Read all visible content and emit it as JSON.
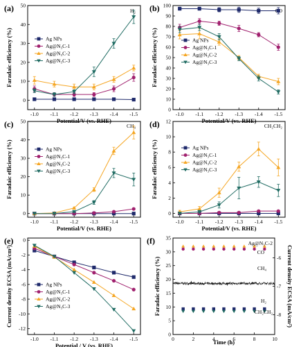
{
  "colors": {
    "navy": "#1f2a6b",
    "magenta": "#a0206e",
    "orange": "#f5a623",
    "teal": "#1f6b62",
    "violet": "#b04cc4"
  },
  "panels": [
    {
      "letter": "(a)",
      "gas": "H₂",
      "ylabel": "Faradaic efficiency (%)",
      "xlabel": "Potential/V (vs. RHE)",
      "x": [
        -1.0,
        -1.1,
        -1.2,
        -1.3,
        -1.4,
        -1.5
      ],
      "xticks": [
        "-1.0",
        "-1.1",
        "-1.2",
        "-1.3",
        "-1.4",
        "-1.5"
      ],
      "ylim": [
        -5,
        50
      ],
      "yticks": [
        "0",
        "10",
        "20",
        "30",
        "40",
        "50"
      ],
      "legend_position": "top-left",
      "series": [
        {
          "name": "Ag NPs",
          "values": [
            0.5,
            0.5,
            0.5,
            0.5,
            0.5,
            0.3
          ],
          "errs": [
            0.4,
            0.4,
            0.4,
            0.4,
            0.4,
            0.4
          ]
        },
        {
          "name": "Ag@N₃C-1",
          "values": [
            6,
            3,
            3,
            3,
            6,
            12
          ],
          "errs": [
            1.5,
            1,
            1,
            1,
            1.5,
            2
          ]
        },
        {
          "name": "Ag@N₃C-2",
          "values": [
            10.5,
            8.5,
            7,
            7,
            11,
            17
          ],
          "errs": [
            2,
            1.5,
            1.5,
            1.5,
            1.5,
            1.5
          ]
        },
        {
          "name": "Ag@N₃C-3",
          "values": [
            5,
            3,
            4.5,
            15,
            30,
            44
          ],
          "errs": [
            1,
            1,
            1,
            2.5,
            2.5,
            3.5
          ]
        }
      ]
    },
    {
      "letter": "(b)",
      "gas": "CO",
      "ylabel": "Faradaic efficiency (%)",
      "xlabel": "Potential/V (vs. RHE)",
      "x": [
        -1.0,
        -1.1,
        -1.2,
        -1.3,
        -1.4,
        -1.5
      ],
      "xticks": [
        "-1.0",
        "-1.1",
        "-1.2",
        "-1.3",
        "-1.4",
        "-1.5"
      ],
      "ylim": [
        0,
        100
      ],
      "yticks": [
        "0",
        "10",
        "20",
        "30",
        "40",
        "50",
        "60",
        "70",
        "80",
        "90",
        "100"
      ],
      "legend_position": "left",
      "series": [
        {
          "name": "Ag NPs",
          "values": [
            97,
            97,
            96,
            96,
            95,
            95
          ],
          "errs": [
            1.5,
            1.5,
            2,
            2.5,
            2.5,
            3
          ]
        },
        {
          "name": "Ag@N₃C-1",
          "values": [
            79,
            85,
            83,
            78,
            72,
            60
          ],
          "errs": [
            3,
            2.5,
            2,
            3,
            2,
            3
          ]
        },
        {
          "name": "Ag@N₃C-2",
          "values": [
            72,
            73,
            65,
            50,
            32,
            27
          ],
          "errs": [
            4,
            5,
            3,
            2,
            2,
            3
          ]
        },
        {
          "name": "Ag@N₃C-3",
          "values": [
            77,
            79,
            70,
            49,
            30,
            17
          ],
          "errs": [
            3,
            3,
            3,
            2,
            2.5,
            2
          ]
        }
      ]
    },
    {
      "letter": "(c)",
      "gas": "CH₄",
      "ylabel": "Faradaic efficiency (%)",
      "xlabel": "Potential/V (vs. RHE)",
      "x": [
        -1.0,
        -1.1,
        -1.2,
        -1.3,
        -1.4,
        -1.5
      ],
      "xticks": [
        "-1.0",
        "-1.1",
        "-1.2",
        "-1.3",
        "-1.4",
        "-1.5"
      ],
      "ylim": [
        -2,
        50
      ],
      "yticks": [
        "0",
        "10",
        "20",
        "30",
        "40",
        "50"
      ],
      "legend_position": "left",
      "series": [
        {
          "name": "Ag NPs",
          "values": [
            0,
            0,
            0,
            0,
            0,
            0
          ],
          "errs": [
            0.2,
            0.2,
            0.2,
            0.2,
            0.2,
            0.2
          ]
        },
        {
          "name": "Ag@N₃C-1",
          "values": [
            0,
            0,
            0,
            0.3,
            1,
            2.5
          ],
          "errs": [
            0.2,
            0.2,
            0.2,
            0.2,
            0.5,
            0.5
          ]
        },
        {
          "name": "Ag@N₃C-2",
          "values": [
            0,
            0.3,
            3,
            13,
            34,
            44
          ],
          "errs": [
            0.3,
            0.3,
            0.5,
            1,
            2,
            3.5
          ]
        },
        {
          "name": "Ag@N₃C-3",
          "values": [
            0,
            0,
            1,
            6,
            22,
            18.5
          ],
          "errs": [
            0.2,
            0.2,
            0.4,
            1,
            2.5,
            3.5
          ]
        }
      ]
    },
    {
      "letter": "(d)",
      "gas": "CH₂CH₂",
      "ylabel": "Faradaic efficiency (%)",
      "xlabel": "Potential/V (vs. RHE)",
      "x": [
        -1.0,
        -1.1,
        -1.2,
        -1.3,
        -1.4,
        -1.5
      ],
      "xticks": [
        "-1.0",
        "-1.1",
        "-1.2",
        "-1.3",
        "-1.4",
        "-1.5"
      ],
      "ylim": [
        -0.5,
        12
      ],
      "yticks": [
        "0",
        "2",
        "4",
        "6",
        "8",
        "10",
        "12"
      ],
      "legend_position": "left",
      "series": [
        {
          "name": "Ag NPs",
          "values": [
            0,
            0,
            0,
            0,
            0,
            0
          ],
          "errs": [
            0.1,
            0.1,
            0.1,
            0.1,
            0.1,
            0.1
          ]
        },
        {
          "name": "Ag@N₃C-1",
          "values": [
            0,
            0,
            0.1,
            0.1,
            0.3,
            0.3
          ],
          "errs": [
            0.1,
            0.1,
            0.1,
            0.1,
            0.1,
            0.1
          ]
        },
        {
          "name": "Ag@N₃C-2",
          "values": [
            0.2,
            0.6,
            2.7,
            6.1,
            8.4,
            6
          ],
          "errs": [
            0.2,
            0.3,
            0.6,
            0.6,
            0.9,
            1.1
          ]
        },
        {
          "name": "Ag@N₃C-3",
          "values": [
            0,
            0.2,
            1.1,
            3.3,
            4.1,
            3
          ],
          "errs": [
            0.1,
            0.2,
            0.4,
            1.4,
            0.7,
            0.8
          ]
        }
      ]
    },
    {
      "letter": "(e)",
      "ylabel": "Current density ECSA (mA/cm²)",
      "xlabel": "Potential / V (vs. RHE)",
      "x": [
        -1.0,
        -1.1,
        -1.2,
        -1.3,
        -1.4,
        -1.5
      ],
      "xticks": [
        "-1.0",
        "-1.1",
        "-1.2",
        "-1.3",
        "-1.4",
        "-1.5"
      ],
      "ylim": [
        -12.8,
        0.3
      ],
      "yticks": [
        "0",
        "-2",
        "-4",
        "-6",
        "-8",
        "-10",
        "-12"
      ],
      "legend_position": "lower-left",
      "series": [
        {
          "name": "Ag NPs",
          "values": [
            -1.4,
            -2.2,
            -3,
            -3.7,
            -4.4,
            -5
          ]
        },
        {
          "name": "Ag@N₃C-1",
          "values": [
            -1.1,
            -2.2,
            -3.3,
            -4.4,
            -5.5,
            -6.7
          ]
        },
        {
          "name": "Ag@N₃C-2",
          "values": [
            -0.8,
            -2.3,
            -4,
            -5.7,
            -7.5,
            -9.3
          ]
        },
        {
          "name": "Ag@N₃C-3",
          "values": [
            -0.7,
            -2.2,
            -4.4,
            -6.6,
            -9.4,
            -12.3
          ]
        }
      ]
    },
    {
      "letter": "(f)",
      "ylabel": "Faradaic efficiency (%)",
      "y2label": "Current density ECSA (mA/cm²)",
      "xlabel": "Time (h)",
      "xlim": [
        0,
        10
      ],
      "xticks": [
        "0",
        "2",
        "4",
        "6",
        "8",
        "10"
      ],
      "ylim": [
        0,
        35
      ],
      "yticks": [
        "0",
        "5",
        "10",
        "15",
        "20",
        "25",
        "30",
        "35"
      ],
      "y2lim": [
        -5.3,
        -8.7
      ],
      "y2ticks": [
        "-6",
        "-7",
        "-8"
      ],
      "series_name": "Ag@N₃C-2",
      "annotations": {
        "co": "CO",
        "ch4": "CH₄",
        "h2": "H₂",
        "c2h4": "CH₂CH₂"
      },
      "points": {
        "ch4": {
          "t": [
            1,
            2,
            3,
            4,
            5,
            6,
            7,
            8,
            9
          ],
          "v": [
            32,
            32,
            32,
            32,
            32,
            32,
            32,
            32,
            32
          ]
        },
        "co": {
          "t": [
            1,
            2,
            3,
            4,
            5,
            6,
            7,
            8,
            9
          ],
          "v": [
            31,
            31,
            31,
            31,
            31,
            31,
            31,
            31,
            31
          ]
        },
        "h2": {
          "t": [
            1,
            2,
            3,
            4,
            5,
            6,
            7,
            8,
            9
          ],
          "v": [
            9.3,
            9.3,
            9.3,
            9.3,
            9.3,
            9.3,
            9.3,
            9.3,
            9.3
          ]
        },
        "c2h4": {
          "t": [
            1,
            2,
            3,
            4,
            5,
            6,
            7,
            8,
            9
          ],
          "v": [
            8.4,
            8.4,
            8.4,
            8.4,
            8.4,
            8.4,
            8.4,
            8.4,
            8.4
          ]
        }
      },
      "current": {
        "mean": -6.9
      }
    }
  ]
}
